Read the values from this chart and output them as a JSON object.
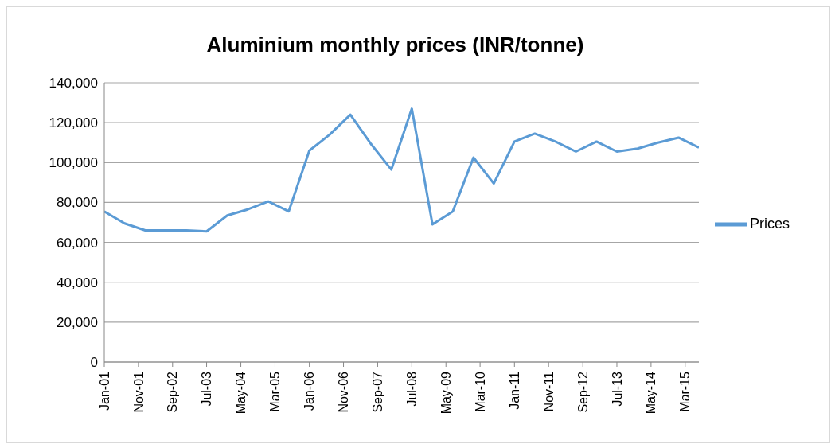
{
  "chart_data": {
    "type": "line",
    "title": "Aluminium monthly prices (INR/tonne)",
    "x": [
      "2001-01",
      "2001-07",
      "2002-01",
      "2002-07",
      "2003-01",
      "2003-07",
      "2004-01",
      "2004-07",
      "2005-01",
      "2005-07",
      "2006-01",
      "2006-07",
      "2007-01",
      "2007-07",
      "2008-01",
      "2008-07",
      "2009-01",
      "2009-07",
      "2010-01",
      "2010-07",
      "2011-01",
      "2011-07",
      "2012-01",
      "2012-07",
      "2013-01",
      "2013-07",
      "2014-01",
      "2014-07",
      "2015-01",
      "2015-07"
    ],
    "series": [
      {
        "name": "Prices",
        "color": "#5b9bd5",
        "values": [
          75500,
          69500,
          66000,
          66000,
          66000,
          65500,
          73500,
          76500,
          80500,
          75500,
          106000,
          114000,
          124000,
          109500,
          96500,
          127000,
          69000,
          75500,
          102500,
          89500,
          110500,
          114500,
          110500,
          105500,
          110500,
          105500,
          107000,
          110000,
          112500,
          107500
        ]
      }
    ],
    "xlim": [
      "2001-01",
      "2015-07"
    ],
    "xticks": [
      {
        "value": "2001-01",
        "label": "Jan-01"
      },
      {
        "value": "2001-11",
        "label": "Nov-01"
      },
      {
        "value": "2002-09",
        "label": "Sep-02"
      },
      {
        "value": "2003-07",
        "label": "Jul-03"
      },
      {
        "value": "2004-05",
        "label": "May-04"
      },
      {
        "value": "2005-03",
        "label": "Mar-05"
      },
      {
        "value": "2006-01",
        "label": "Jan-06"
      },
      {
        "value": "2006-11",
        "label": "Nov-06"
      },
      {
        "value": "2007-09",
        "label": "Sep-07"
      },
      {
        "value": "2008-07",
        "label": "Jul-08"
      },
      {
        "value": "2009-05",
        "label": "May-09"
      },
      {
        "value": "2010-03",
        "label": "Mar-10"
      },
      {
        "value": "2011-01",
        "label": "Jan-11"
      },
      {
        "value": "2011-11",
        "label": "Nov-11"
      },
      {
        "value": "2012-09",
        "label": "Sep-12"
      },
      {
        "value": "2013-07",
        "label": "Jul-13"
      },
      {
        "value": "2014-05",
        "label": "May-14"
      },
      {
        "value": "2015-03",
        "label": "Mar-15"
      }
    ],
    "ylim": [
      0,
      140000
    ],
    "yticks": [
      0,
      {
        "value": 20000,
        "label": "20,000"
      },
      {
        "value": 40000,
        "label": "40,000"
      },
      {
        "value": 60000,
        "label": "60,000"
      },
      {
        "value": 80000,
        "label": "80,000"
      },
      {
        "value": 100000,
        "label": "100,000"
      },
      {
        "value": 120000,
        "label": "120,000"
      },
      {
        "value": 140000,
        "label": "140,000"
      }
    ],
    "grid": "y",
    "legend": "right",
    "marker": "none",
    "line_style": "solid"
  }
}
